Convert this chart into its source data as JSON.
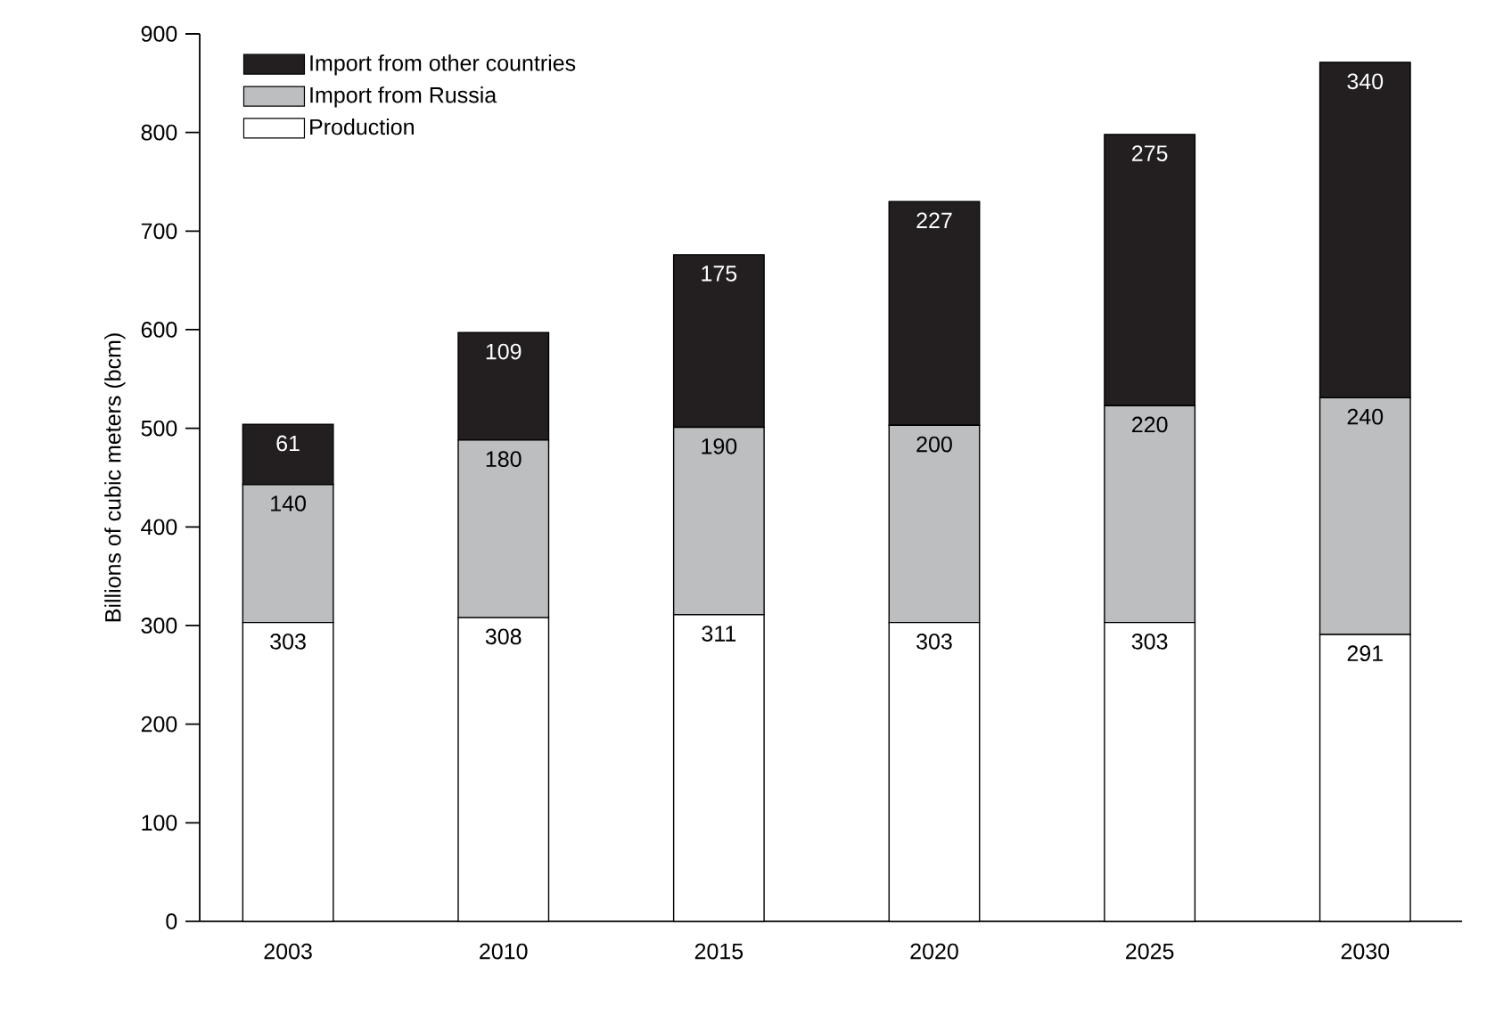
{
  "chart_data": {
    "type": "bar",
    "stacked": true,
    "ylabel": "Billions of cubic meters (bcm)",
    "categories": [
      "2003",
      "2010",
      "2015",
      "2020",
      "2025",
      "2030"
    ],
    "series": [
      {
        "name": "Production",
        "color": "#ffffff",
        "values": [
          303,
          308,
          311,
          303,
          303,
          291
        ]
      },
      {
        "name": "Import from Russia",
        "color": "#bcbec0",
        "values": [
          140,
          180,
          190,
          200,
          220,
          240
        ]
      },
      {
        "name": "Import from other countries",
        "color": "#231f20",
        "values": [
          61,
          109,
          175,
          227,
          275,
          340
        ]
      }
    ],
    "ylim": [
      0,
      900
    ],
    "yticks": [
      0,
      100,
      200,
      300,
      400,
      500,
      600,
      700,
      800,
      900
    ],
    "data_labels": true,
    "legend": "top left",
    "grid": false
  }
}
